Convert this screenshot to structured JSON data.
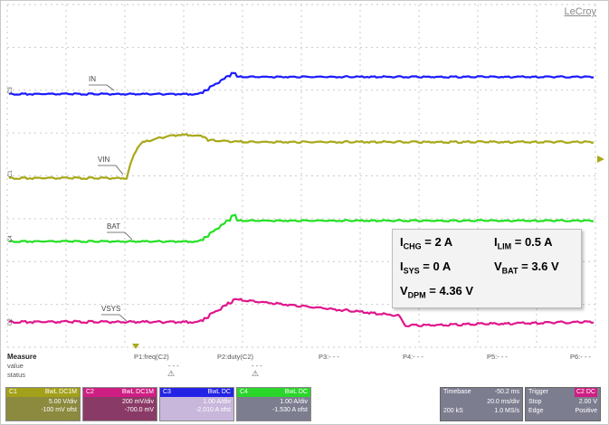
{
  "brand": "LeCroy",
  "annotation": {
    "i_chg": {
      "sym": "I",
      "sub": "CHG",
      "val": " = 2 A"
    },
    "i_lim": {
      "sym": "I",
      "sub": "LIM",
      "val": " = 0.5 A"
    },
    "i_sys": {
      "sym": "I",
      "sub": "SYS",
      "val": " = 0 A"
    },
    "v_bat": {
      "sym": "V",
      "sub": "BAT",
      "val": " = 3.6 V"
    },
    "v_dpm": {
      "sym": "V",
      "sub": "DPM",
      "val": " = 4.36 V"
    }
  },
  "signals": {
    "in": {
      "label": "IN",
      "color": "#1a1aff",
      "marker": "C3"
    },
    "vin": {
      "label": "VIN",
      "color": "#a8a81a",
      "marker": "C1"
    },
    "bat": {
      "label": "BAT",
      "color": "#22e022",
      "marker": "C4"
    },
    "vsys": {
      "label": "VSYS",
      "color": "#e0168c",
      "marker": "C2"
    }
  },
  "measure": {
    "title": "Measure",
    "value_label": "value",
    "status_label": "status",
    "p1": "P1:freq(C2)",
    "p2": "P2:duty(C2)",
    "p3": "P3:- - -",
    "p4": "P4:- - -",
    "p5": "P5:- - -",
    "p6": "P6:- - -",
    "p1_value": "- - -",
    "p2_value": "- - -"
  },
  "channels": [
    {
      "id": "C1",
      "coupling": "BwL DC1M",
      "line1": "5.00 V/div",
      "line2": "-100 mV ofst",
      "color": "#a3a019"
    },
    {
      "id": "C2",
      "coupling": "BwL DC1M",
      "line1": "200 mV/div",
      "line2": "-700.0 mV",
      "color": "#cf1e83"
    },
    {
      "id": "C3",
      "coupling": "BwL DC",
      "line1": "1.00 A/div",
      "line2": "-2.010 A ofst",
      "color": "#2323e6"
    },
    {
      "id": "C4",
      "coupling": "BwL DC",
      "line1": "1.00 A/div",
      "line2": "-1.530 A ofst",
      "color": "#2ad62a"
    }
  ],
  "timebase": {
    "label": "Timebase",
    "value": "-50.2 ms",
    "div": "20.0 ms/div",
    "samples": "200 kS",
    "rate": "1.0 MS/s"
  },
  "trigger": {
    "label": "Trigger",
    "ch": "C2 DC",
    "mode": "Stop",
    "level": "2.00 V",
    "type": "Edge",
    "slope": "Positive"
  }
}
